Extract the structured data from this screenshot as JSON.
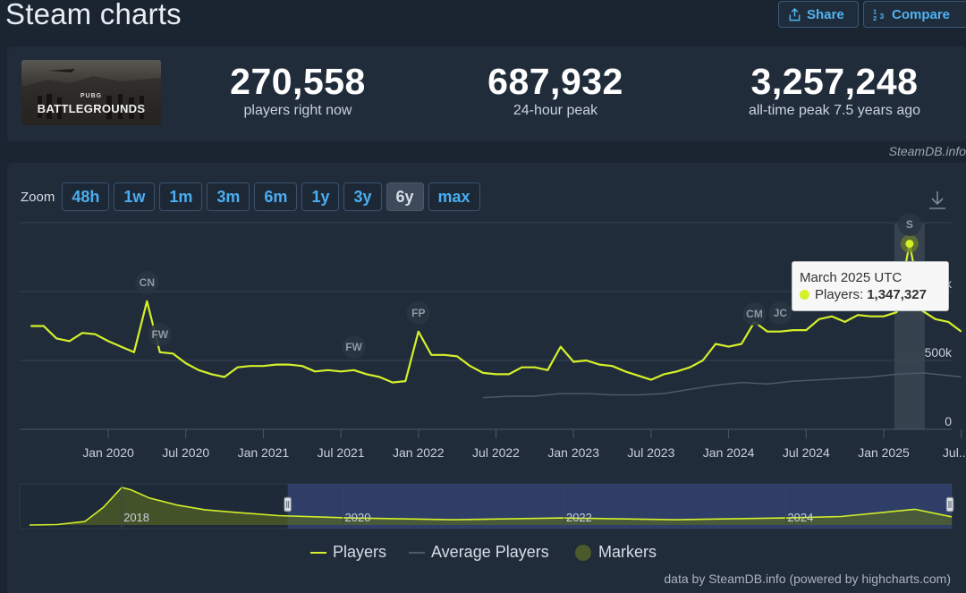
{
  "header": {
    "title": "Steam charts",
    "share_label": "Share",
    "compare_label": "Compare"
  },
  "game": {
    "logo_small": "PUBG",
    "logo_big": "BATTLEGROUNDS"
  },
  "stats": [
    {
      "value": "270,558",
      "label": "players right now"
    },
    {
      "value": "687,932",
      "label": "24-hour peak"
    },
    {
      "value": "3,257,248",
      "label": "all-time peak 7.5 years ago"
    }
  ],
  "credit_top": "SteamDB.info",
  "zoom": {
    "label": "Zoom",
    "options": [
      "48h",
      "1w",
      "1m",
      "3m",
      "6m",
      "1y",
      "3y",
      "6y",
      "max"
    ],
    "active": "6y"
  },
  "tooltip": {
    "title": "March 2025 UTC",
    "series": "Players:",
    "value": "1,347,327"
  },
  "legend": {
    "players": "Players",
    "average": "Average Players",
    "markers": "Markers"
  },
  "credit_bottom": "data by SteamDB.info (powered by highcharts.com)",
  "colors": {
    "players": "#d4f02a",
    "average": "#4d5968",
    "markers": "#4a5a2c",
    "background": "#1b2431",
    "panel": "#212c3b",
    "accent": "#4aaef0"
  },
  "chart_data": {
    "type": "line",
    "x_ticks": [
      "Jan 2020",
      "Jul 2020",
      "Jan 2021",
      "Jul 2021",
      "Jan 2022",
      "Jul 2022",
      "Jan 2023",
      "Jul 2023",
      "Jan 2024",
      "Jul 2024",
      "Jan 2025",
      "Jul..."
    ],
    "y_ticks": [
      "0",
      "500k",
      "1000k"
    ],
    "ylim": [
      0,
      1500000
    ],
    "series": [
      {
        "name": "Players",
        "points": [
          [
            "2019-07",
            750000
          ],
          [
            "2019-08",
            750000
          ],
          [
            "2019-09",
            660000
          ],
          [
            "2019-10",
            640000
          ],
          [
            "2019-11",
            700000
          ],
          [
            "2019-12",
            690000
          ],
          [
            "2020-01",
            640000
          ],
          [
            "2020-02",
            600000
          ],
          [
            "2020-03",
            560000
          ],
          [
            "2020-04",
            930000
          ],
          [
            "2020-05",
            560000
          ],
          [
            "2020-06",
            550000
          ],
          [
            "2020-07",
            480000
          ],
          [
            "2020-08",
            430000
          ],
          [
            "2020-09",
            400000
          ],
          [
            "2020-10",
            380000
          ],
          [
            "2020-11",
            450000
          ],
          [
            "2020-12",
            460000
          ],
          [
            "2021-01",
            460000
          ],
          [
            "2021-02",
            470000
          ],
          [
            "2021-03",
            470000
          ],
          [
            "2021-04",
            460000
          ],
          [
            "2021-05",
            420000
          ],
          [
            "2021-06",
            430000
          ],
          [
            "2021-07",
            420000
          ],
          [
            "2021-08",
            430000
          ],
          [
            "2021-09",
            400000
          ],
          [
            "2021-10",
            380000
          ],
          [
            "2021-11",
            340000
          ],
          [
            "2021-12",
            350000
          ],
          [
            "2022-01",
            710000
          ],
          [
            "2022-02",
            540000
          ],
          [
            "2022-03",
            540000
          ],
          [
            "2022-04",
            530000
          ],
          [
            "2022-05",
            460000
          ],
          [
            "2022-06",
            410000
          ],
          [
            "2022-07",
            400000
          ],
          [
            "2022-08",
            400000
          ],
          [
            "2022-09",
            450000
          ],
          [
            "2022-10",
            450000
          ],
          [
            "2022-11",
            430000
          ],
          [
            "2022-12",
            600000
          ],
          [
            "2023-01",
            490000
          ],
          [
            "2023-02",
            500000
          ],
          [
            "2023-03",
            470000
          ],
          [
            "2023-04",
            460000
          ],
          [
            "2023-05",
            420000
          ],
          [
            "2023-06",
            390000
          ],
          [
            "2023-07",
            360000
          ],
          [
            "2023-08",
            400000
          ],
          [
            "2023-09",
            420000
          ],
          [
            "2023-10",
            450000
          ],
          [
            "2023-11",
            500000
          ],
          [
            "2023-12",
            620000
          ],
          [
            "2024-01",
            600000
          ],
          [
            "2024-02",
            620000
          ],
          [
            "2024-03",
            780000
          ],
          [
            "2024-04",
            710000
          ],
          [
            "2024-05",
            710000
          ],
          [
            "2024-06",
            720000
          ],
          [
            "2024-07",
            720000
          ],
          [
            "2024-08",
            800000
          ],
          [
            "2024-09",
            820000
          ],
          [
            "2024-10",
            780000
          ],
          [
            "2024-11",
            830000
          ],
          [
            "2024-12",
            820000
          ],
          [
            "2025-01",
            820000
          ],
          [
            "2025-02",
            850000
          ],
          [
            "2025-03",
            1347327
          ],
          [
            "2025-04",
            860000
          ],
          [
            "2025-05",
            800000
          ],
          [
            "2025-06",
            780000
          ],
          [
            "2025-07",
            710000
          ]
        ]
      },
      {
        "name": "Average Players",
        "points": [
          [
            "2022-06",
            230000
          ],
          [
            "2022-08",
            240000
          ],
          [
            "2022-10",
            240000
          ],
          [
            "2022-12",
            260000
          ],
          [
            "2023-02",
            260000
          ],
          [
            "2023-04",
            250000
          ],
          [
            "2023-06",
            250000
          ],
          [
            "2023-08",
            260000
          ],
          [
            "2023-10",
            290000
          ],
          [
            "2023-12",
            320000
          ],
          [
            "2024-02",
            340000
          ],
          [
            "2024-04",
            330000
          ],
          [
            "2024-06",
            350000
          ],
          [
            "2024-08",
            360000
          ],
          [
            "2024-10",
            370000
          ],
          [
            "2024-12",
            380000
          ],
          [
            "2025-02",
            400000
          ],
          [
            "2025-04",
            410000
          ],
          [
            "2025-06",
            390000
          ],
          [
            "2025-07",
            380000
          ]
        ]
      }
    ],
    "markers": [
      {
        "label": "CN",
        "date": "2020-04"
      },
      {
        "label": "FW",
        "date": "2020-05"
      },
      {
        "label": "FW",
        "date": "2021-08"
      },
      {
        "label": "FP",
        "date": "2022-01"
      },
      {
        "label": "CM",
        "date": "2024-03"
      },
      {
        "label": "JC",
        "date": "2024-05"
      },
      {
        "label": "S",
        "date": "2025-03"
      }
    ],
    "navigator": {
      "labels": [
        "2018",
        "2020",
        "2022",
        "2024"
      ],
      "series": [
        [
          "2017-03",
          0
        ],
        [
          "2017-06",
          40000
        ],
        [
          "2017-09",
          300000
        ],
        [
          "2017-11",
          1500000
        ],
        [
          "2018-01",
          3200000
        ],
        [
          "2018-02",
          3000000
        ],
        [
          "2018-04",
          2300000
        ],
        [
          "2018-07",
          1700000
        ],
        [
          "2018-10",
          1300000
        ],
        [
          "2019-01",
          1100000
        ],
        [
          "2019-06",
          800000
        ],
        [
          "2020-01",
          620000
        ],
        [
          "2021-01",
          450000
        ],
        [
          "2022-01",
          600000
        ],
        [
          "2023-01",
          450000
        ],
        [
          "2024-01",
          600000
        ],
        [
          "2024-07",
          720000
        ],
        [
          "2025-03",
          1340000
        ],
        [
          "2025-07",
          700000
        ]
      ],
      "range": [
        "2019-07",
        "2025-07"
      ]
    }
  }
}
